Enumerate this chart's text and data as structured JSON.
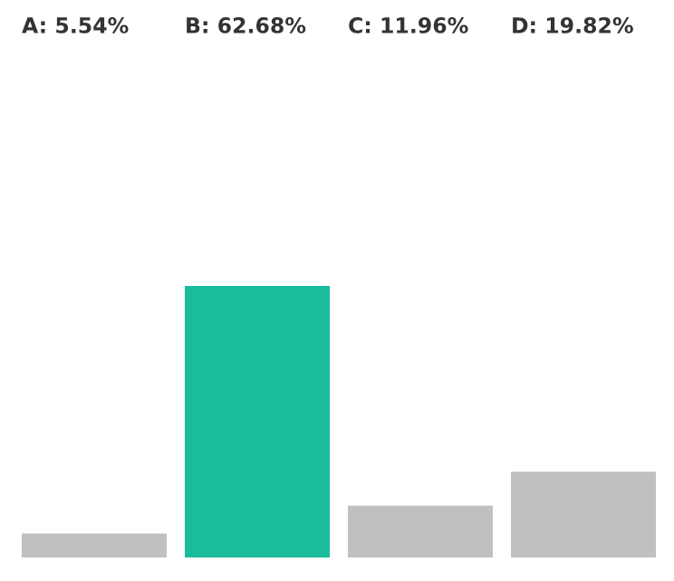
{
  "chart_data": {
    "type": "bar",
    "categories": [
      null,
      null,
      null,
      null
    ],
    "values": [
      5.54,
      62.68,
      11.96,
      19.82
    ],
    "colors": [
      "#c0c0c0",
      "#1abc9c",
      "#c0c0c0",
      "#c0c0c0"
    ],
    "value_labels": [
      "A: 5.54%",
      "B: 62.68%",
      "C: 11.96%",
      "D: 19.82%"
    ]
  }
}
